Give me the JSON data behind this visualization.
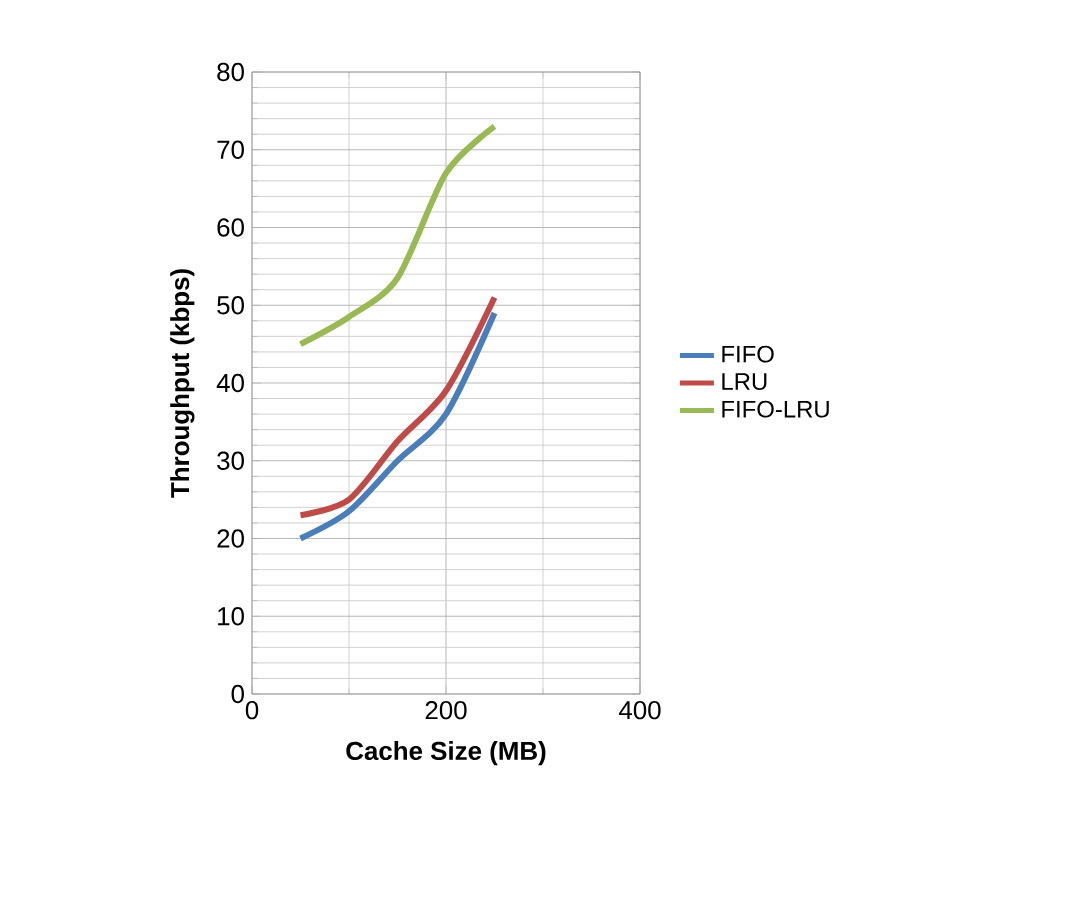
{
  "chart_data": {
    "type": "line",
    "xlabel": "Cache Size (MB)",
    "ylabel": "Throughput (kbps)",
    "x": [
      50,
      100,
      150,
      200,
      250
    ],
    "series": [
      {
        "name": "FIFO",
        "color": "#4a7ebb",
        "values": [
          20,
          23.5,
          30,
          36,
          49
        ]
      },
      {
        "name": "LRU",
        "color": "#be4b48",
        "values": [
          23,
          25,
          32.5,
          39,
          51
        ]
      },
      {
        "name": "FIFO-LRU",
        "color": "#98b954",
        "values": [
          45,
          48.5,
          53.5,
          67,
          73
        ]
      }
    ],
    "xlim": [
      0,
      400
    ],
    "xticks": [
      0,
      200,
      400
    ],
    "ylim": [
      0,
      80
    ],
    "yticks": [
      0,
      10,
      20,
      30,
      40,
      50,
      60,
      70,
      80
    ],
    "grid": true,
    "legend": "right",
    "marker": "none",
    "line_style": "solid"
  }
}
